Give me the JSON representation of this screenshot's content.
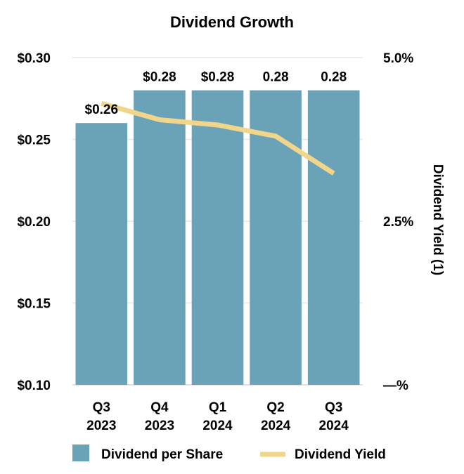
{
  "chart_data": {
    "type": "bar",
    "title": "Dividend Growth",
    "categories": [
      "Q3 2023",
      "Q4 2023",
      "Q1 2024",
      "Q2 2024",
      "Q3 2024"
    ],
    "category_lines": [
      [
        "Q3",
        "2023"
      ],
      [
        "Q4",
        "2023"
      ],
      [
        "Q1",
        "2024"
      ],
      [
        "Q2",
        "2024"
      ],
      [
        "Q3",
        "2024"
      ]
    ],
    "series": [
      {
        "name": "Dividend per Share",
        "type": "bar",
        "axis": "left",
        "color": "#6aa3b8",
        "values": [
          0.26,
          0.28,
          0.28,
          0.28,
          0.28
        ],
        "data_labels": [
          "$0.26",
          "$0.28",
          "$0.28",
          "0.28",
          "0.28"
        ]
      },
      {
        "name": "Dividend Yield",
        "type": "line",
        "axis": "right",
        "color": "#f0d58b",
        "values": [
          4.3,
          4.05,
          3.97,
          3.8,
          3.23
        ]
      }
    ],
    "left_axis": {
      "range": [
        0.1,
        0.3
      ],
      "ticks": [
        0.1,
        0.15,
        0.2,
        0.25,
        0.3
      ],
      "tick_labels": [
        "$0.10",
        "$0.15",
        "$0.20",
        "$0.25",
        "$0.30"
      ]
    },
    "right_axis": {
      "label": "Dividend Yield (1)",
      "range": [
        0,
        5
      ],
      "ticks": [
        0,
        2.5,
        5
      ],
      "tick_labels": [
        "—%",
        "2.5%",
        "5.0%"
      ]
    },
    "grid": true,
    "legend": "bottom"
  }
}
